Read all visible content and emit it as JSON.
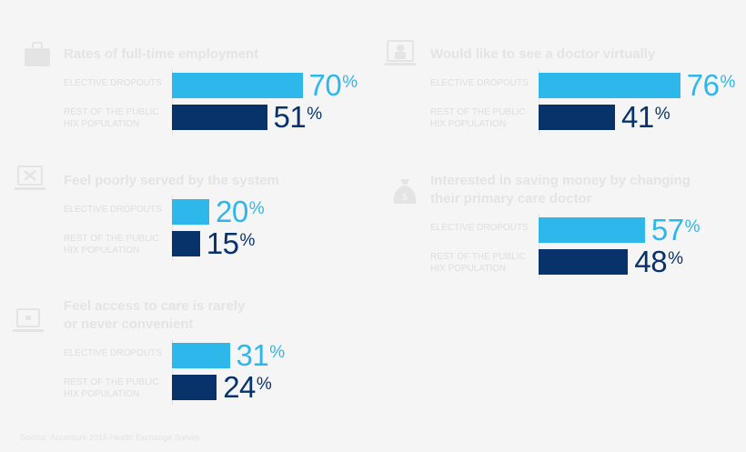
{
  "colors": {
    "background": "#f5f5f5",
    "elective_dropouts": "#2db7ea",
    "rest_of_population": "#08336a",
    "faint_text": "#e3e3e3"
  },
  "row_labels": {
    "elective_dropouts": "ELECTIVE DROPOUTS",
    "rest_line1": "REST OF THE PUBLIC",
    "rest_line2": "HIX POPULATION"
  },
  "percent_symbol": "%",
  "source_note": "Source: Accenture 2015 Health Exchange Survey",
  "chart_data": [
    {
      "type": "bar",
      "icon": "briefcase-icon",
      "title": "Rates of full-time employment",
      "categories": [
        "ELECTIVE DROPOUTS",
        "REST OF THE PUBLIC HIX POPULATION"
      ],
      "values": [
        70,
        51
      ],
      "unit": "%"
    },
    {
      "type": "bar",
      "icon": "monitor-doctor-icon",
      "title": "Would like to see a doctor virtually",
      "categories": [
        "ELECTIVE DROPOUTS",
        "REST OF THE PUBLIC HIX POPULATION"
      ],
      "values": [
        76,
        41
      ],
      "unit": "%"
    },
    {
      "type": "bar",
      "icon": "laptop-tools-icon",
      "title": "Feel poorly served by the system",
      "categories": [
        "ELECTIVE DROPOUTS",
        "REST OF THE PUBLIC HIX POPULATION"
      ],
      "values": [
        20,
        15
      ],
      "unit": "%"
    },
    {
      "type": "bar",
      "icon": "money-bag-icon",
      "title": "Interested in saving money by changing their primary care doctor",
      "title_lines": [
        "Interested in saving money by changing",
        "their primary care doctor"
      ],
      "categories": [
        "ELECTIVE DROPOUTS",
        "REST OF THE PUBLIC HIX POPULATION"
      ],
      "values": [
        57,
        48
      ],
      "unit": "%"
    },
    {
      "type": "bar",
      "icon": "laptop-icon",
      "title": "Feel access to care is rarely or never convenient",
      "title_lines": [
        "Feel access to care is rarely",
        "or never convenient"
      ],
      "categories": [
        "ELECTIVE DROPOUTS",
        "REST OF THE PUBLIC HIX POPULATION"
      ],
      "values": [
        31,
        24
      ],
      "unit": "%"
    }
  ]
}
